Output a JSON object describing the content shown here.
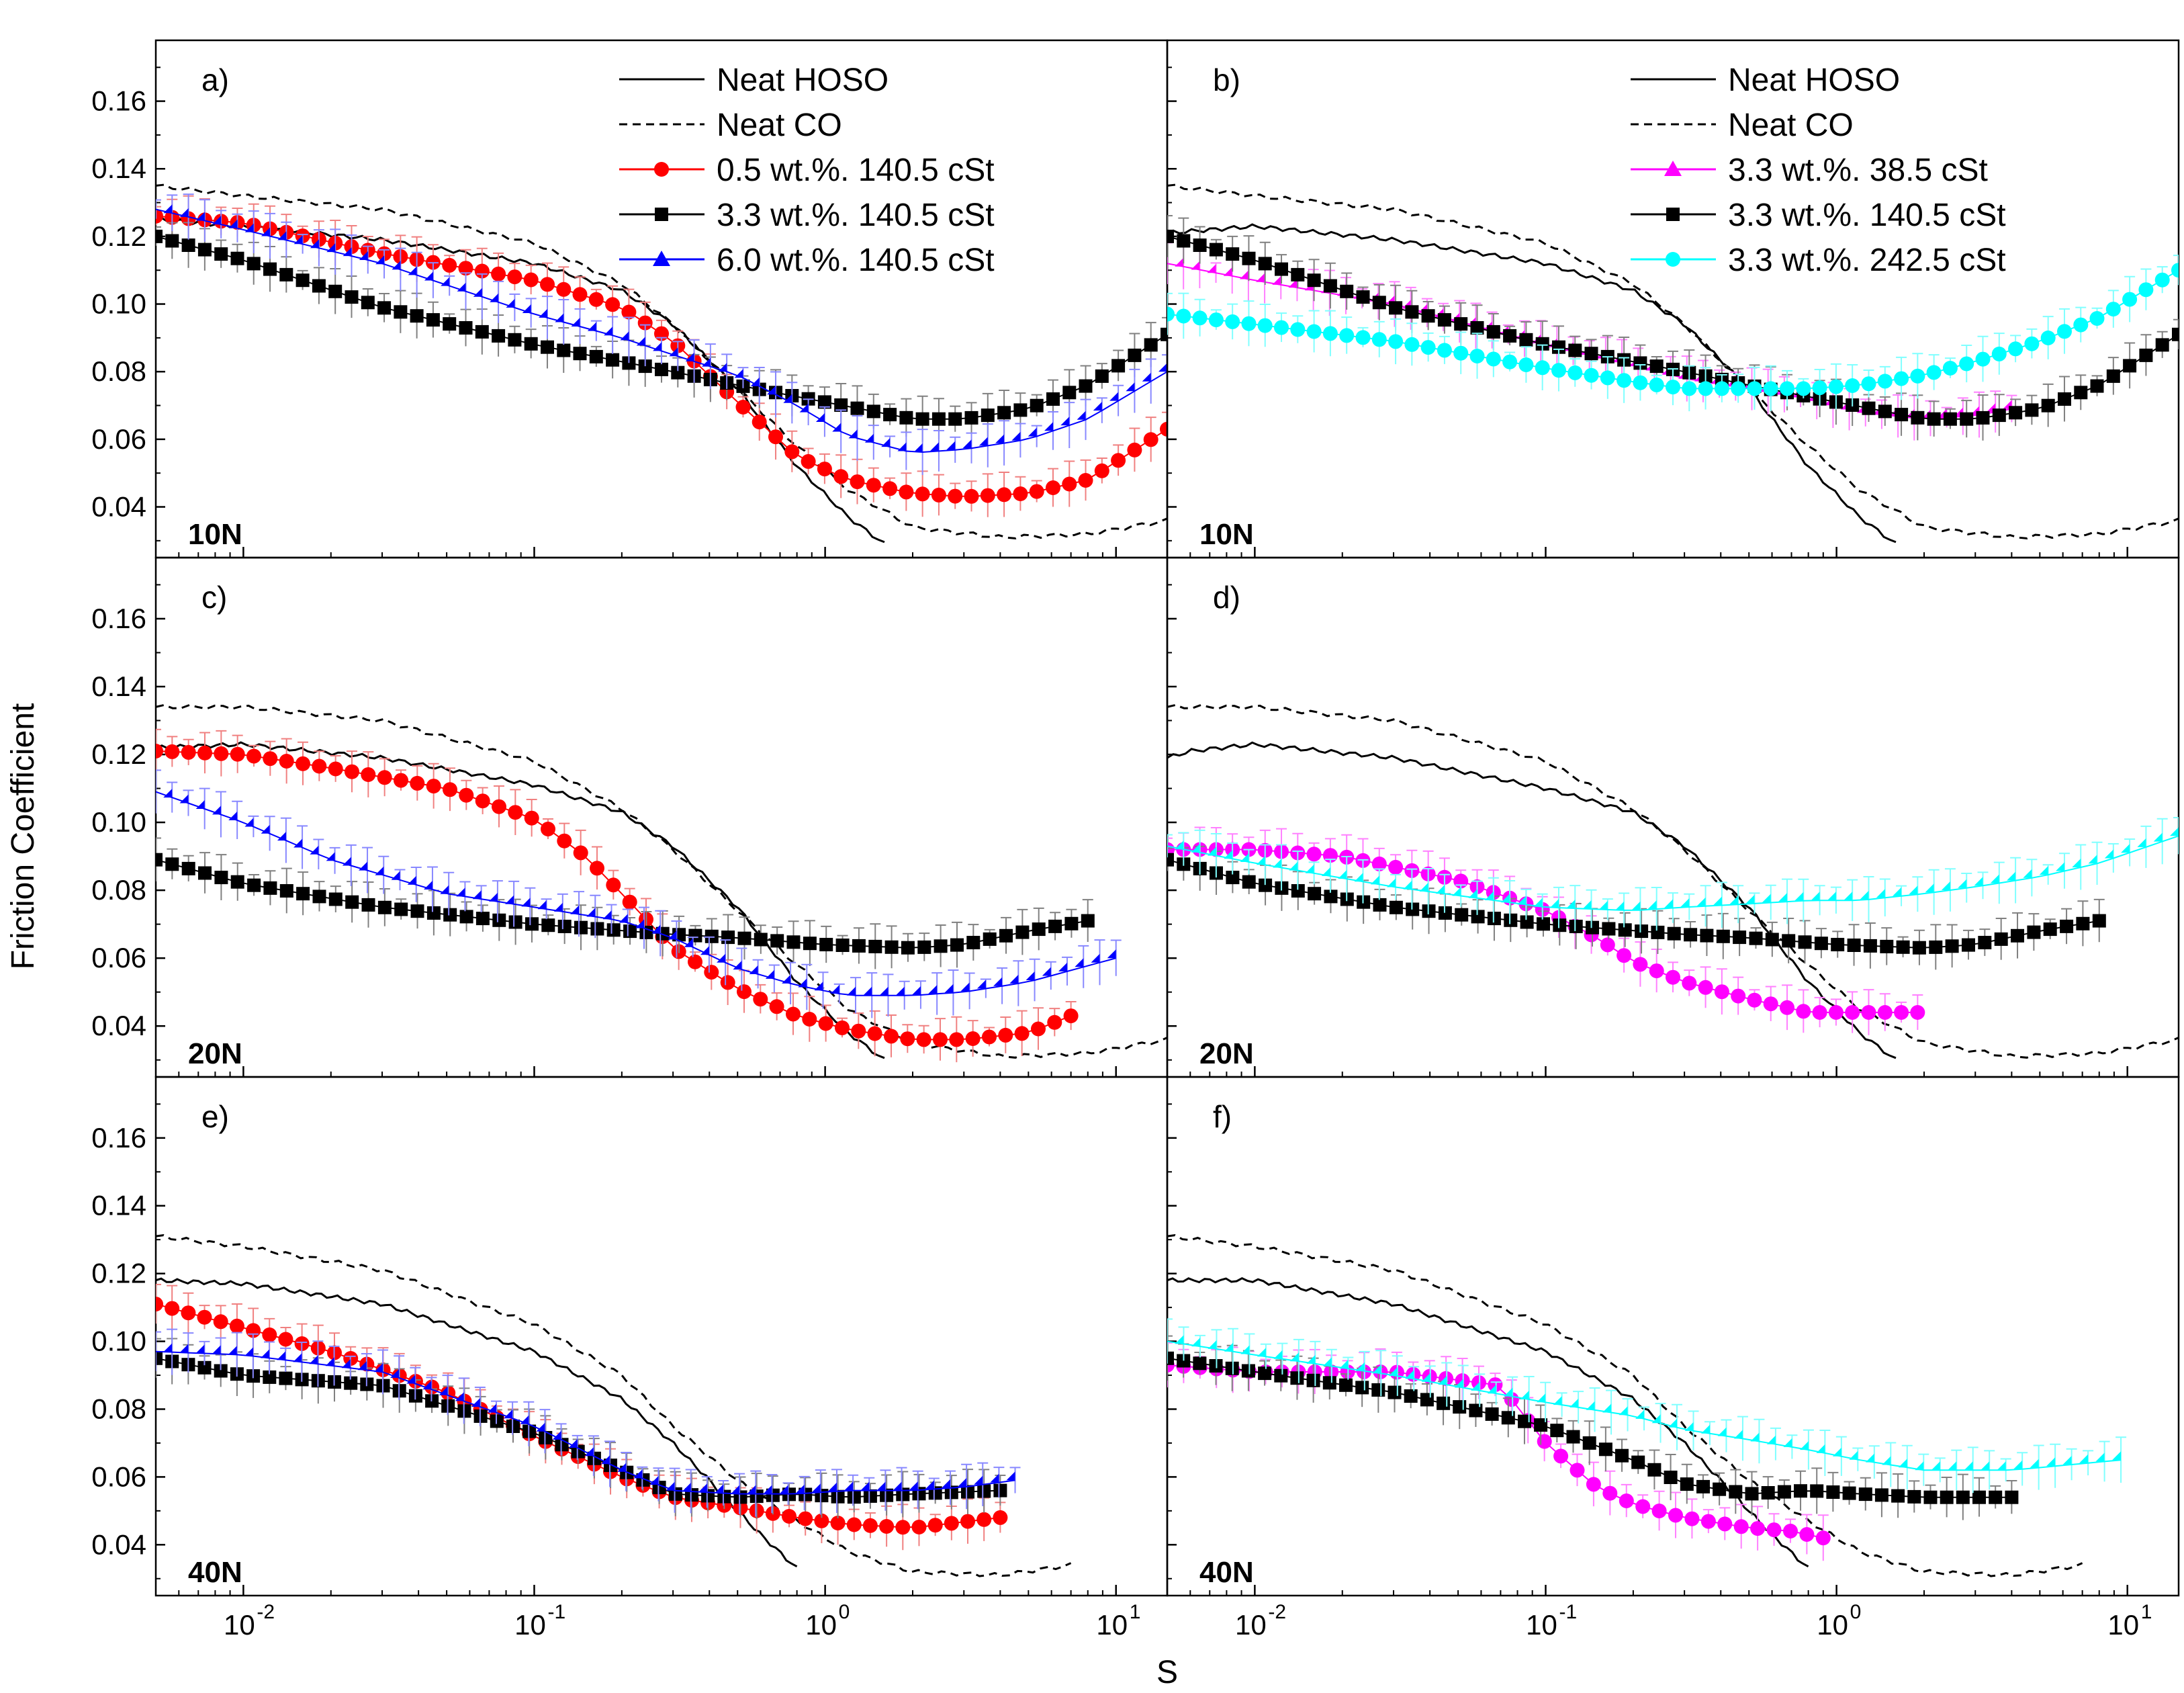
{
  "figure": {
    "ylabel": "Friction Coefficient",
    "xlabel": "S",
    "x_tick_labels": [
      "10",
      "10",
      "10",
      "10"
    ],
    "x_tick_exponents": [
      "-2",
      "-1",
      "0",
      "1"
    ],
    "y_tick_labels": [
      "0.04",
      "0.06",
      "0.08",
      "0.10",
      "0.12",
      "0.14",
      "0.16"
    ]
  },
  "colors": {
    "neat_hoso": "#000000",
    "neat_co": "#000000",
    "red": "#ff0000",
    "black": "#000000",
    "blue": "#0000ff",
    "magenta": "#ff00ff",
    "cyan": "#00ffff",
    "error_red": "#f08080",
    "error_blue": "#8888ff",
    "error_black": "#808080",
    "error_magenta": "#ff80ff",
    "error_cyan": "#80ffff"
  },
  "chart_data": [
    {
      "type": "scatter",
      "panel": "a)",
      "load": "10N",
      "x_scale": "log",
      "xlim": [
        0.005,
        15
      ],
      "ylim": [
        0.025,
        0.178
      ],
      "legend": [
        "Neat HOSO",
        "Neat CO",
        "0.5 wt.%. 140.5 cSt",
        "3.3 wt.%. 140.5 cSt",
        "6.0 wt.%. 140.5 cSt"
      ],
      "series": [
        {
          "name": "Neat HOSO",
          "style": "solid",
          "x": [
            0.005,
            0.01,
            0.03,
            0.1,
            0.2,
            0.3,
            0.5,
            0.8,
            1.2,
            1.6
          ],
          "y": [
            0.125,
            0.123,
            0.119,
            0.112,
            0.104,
            0.094,
            0.075,
            0.052,
            0.037,
            0.029
          ]
        },
        {
          "name": "Neat CO",
          "style": "dashed",
          "x": [
            0.005,
            0.01,
            0.03,
            0.1,
            0.2,
            0.3,
            0.5,
            0.8,
            1.2,
            2,
            4,
            8,
            15
          ],
          "y": [
            0.135,
            0.132,
            0.128,
            0.118,
            0.106,
            0.094,
            0.075,
            0.058,
            0.045,
            0.034,
            0.031,
            0.032,
            0.036
          ]
        },
        {
          "name": "0.5 wt.%. 140.5 cSt",
          "marker": "circle",
          "x": [
            0.005,
            0.01,
            0.03,
            0.1,
            0.2,
            0.3,
            0.5,
            0.8,
            1.2,
            2,
            3,
            5,
            8,
            15
          ],
          "y": [
            0.126,
            0.124,
            0.115,
            0.107,
            0.099,
            0.089,
            0.071,
            0.055,
            0.048,
            0.044,
            0.043,
            0.044,
            0.048,
            0.063
          ]
        },
        {
          "name": "3.3 wt.%. 140.5 cSt",
          "marker": "square",
          "x": [
            0.005,
            0.01,
            0.03,
            0.1,
            0.3,
            0.5,
            1,
            2,
            3,
            5,
            8,
            15
          ],
          "y": [
            0.12,
            0.113,
            0.099,
            0.088,
            0.08,
            0.076,
            0.071,
            0.066,
            0.066,
            0.069,
            0.076,
            0.091
          ]
        },
        {
          "name": "6.0 wt.%. 140.5 cSt",
          "marker": "triangle",
          "x": [
            0.005,
            0.01,
            0.03,
            0.1,
            0.2,
            0.3,
            0.5,
            0.8,
            1.2,
            2,
            3,
            5,
            8,
            15
          ],
          "y": [
            0.128,
            0.122,
            0.112,
            0.097,
            0.09,
            0.085,
            0.079,
            0.07,
            0.061,
            0.056,
            0.057,
            0.06,
            0.066,
            0.08
          ]
        }
      ]
    },
    {
      "type": "scatter",
      "panel": "b)",
      "load": "10N",
      "x_scale": "log",
      "xlim": [
        0.005,
        15
      ],
      "ylim": [
        0.025,
        0.178
      ],
      "legend": [
        "Neat HOSO",
        "Neat CO",
        "3.3 wt.%. 38.5 cSt",
        "3.3 wt.%. 140.5 cSt",
        "3.3 wt.%. 242.5 cSt"
      ],
      "series": [
        {
          "name": "Neat HOSO",
          "style": "solid",
          "x": [
            0.005,
            0.01,
            0.03,
            0.1,
            0.2,
            0.3,
            0.5,
            0.8,
            1.2,
            1.6
          ],
          "y": [
            0.121,
            0.123,
            0.119,
            0.112,
            0.104,
            0.094,
            0.075,
            0.052,
            0.037,
            0.029
          ]
        },
        {
          "name": "Neat CO",
          "style": "dashed",
          "x": [
            0.005,
            0.01,
            0.03,
            0.1,
            0.2,
            0.3,
            0.5,
            0.8,
            1.2,
            2,
            4,
            8,
            15
          ],
          "y": [
            0.135,
            0.132,
            0.128,
            0.118,
            0.106,
            0.094,
            0.075,
            0.058,
            0.045,
            0.034,
            0.031,
            0.032,
            0.036
          ]
        },
        {
          "name": "3.3 wt.%. 38.5 cSt",
          "marker": "triangle",
          "x": [
            0.005,
            0.01,
            0.03,
            0.1,
            0.2,
            0.3,
            0.5,
            0.8,
            1.2,
            2,
            3,
            4
          ],
          "y": [
            0.112,
            0.107,
            0.1,
            0.088,
            0.082,
            0.078,
            0.075,
            0.072,
            0.068,
            0.066,
            0.067,
            0.069
          ]
        },
        {
          "name": "3.3 wt.%. 140.5 cSt",
          "marker": "square",
          "x": [
            0.005,
            0.01,
            0.03,
            0.1,
            0.3,
            0.5,
            1,
            2,
            3,
            5,
            8,
            15
          ],
          "y": [
            0.12,
            0.113,
            0.099,
            0.088,
            0.08,
            0.076,
            0.071,
            0.066,
            0.066,
            0.069,
            0.076,
            0.091
          ]
        },
        {
          "name": "3.3 wt.%. 242.5 cSt",
          "marker": "circle",
          "x": [
            0.005,
            0.01,
            0.03,
            0.1,
            0.2,
            0.3,
            0.5,
            0.8,
            1.2,
            2,
            3,
            5,
            8,
            15
          ],
          "y": [
            0.097,
            0.094,
            0.089,
            0.081,
            0.077,
            0.075,
            0.075,
            0.075,
            0.076,
            0.079,
            0.083,
            0.089,
            0.096,
            0.11
          ]
        }
      ]
    },
    {
      "type": "scatter",
      "panel": "c)",
      "load": "20N",
      "x_scale": "log",
      "xlim": [
        0.005,
        15
      ],
      "ylim": [
        0.025,
        0.178
      ],
      "series": [
        {
          "name": "Neat HOSO",
          "style": "solid",
          "x": [
            0.005,
            0.01,
            0.03,
            0.1,
            0.2,
            0.3,
            0.5,
            0.8,
            1.2,
            1.6
          ],
          "y": [
            0.122,
            0.123,
            0.119,
            0.111,
            0.103,
            0.093,
            0.075,
            0.053,
            0.038,
            0.03
          ]
        },
        {
          "name": "Neat CO",
          "style": "dashed",
          "x": [
            0.005,
            0.01,
            0.03,
            0.1,
            0.2,
            0.3,
            0.5,
            0.8,
            1.2,
            2,
            4,
            8,
            15
          ],
          "y": [
            0.134,
            0.134,
            0.13,
            0.118,
            0.104,
            0.092,
            0.074,
            0.058,
            0.045,
            0.035,
            0.031,
            0.032,
            0.036
          ]
        },
        {
          "name": "0.5 wt.%. 140.5 cSt",
          "marker": "circle",
          "x": [
            0.005,
            0.01,
            0.02,
            0.05,
            0.1,
            0.15,
            0.2,
            0.3,
            0.5,
            0.8,
            1.2,
            2,
            3,
            5,
            7
          ],
          "y": [
            0.121,
            0.12,
            0.116,
            0.11,
            0.101,
            0.09,
            0.079,
            0.063,
            0.051,
            0.043,
            0.039,
            0.036,
            0.036,
            0.038,
            0.043
          ]
        },
        {
          "name": "3.3 wt.%. 140.5 cSt",
          "marker": "square",
          "x": [
            0.005,
            0.01,
            0.03,
            0.1,
            0.3,
            0.5,
            1,
            2,
            3,
            5,
            8
          ],
          "y": [
            0.089,
            0.082,
            0.075,
            0.07,
            0.067,
            0.066,
            0.064,
            0.063,
            0.064,
            0.068,
            0.071
          ]
        },
        {
          "name": "6.0 wt.%. 140.5 cSt",
          "marker": "triangle",
          "x": [
            0.005,
            0.01,
            0.02,
            0.05,
            0.1,
            0.2,
            0.3,
            0.5,
            0.8,
            1.2,
            2,
            3,
            5,
            10
          ],
          "y": [
            0.109,
            0.1,
            0.089,
            0.079,
            0.075,
            0.071,
            0.066,
            0.057,
            0.052,
            0.049,
            0.049,
            0.05,
            0.053,
            0.06
          ]
        }
      ]
    },
    {
      "type": "scatter",
      "panel": "d)",
      "load": "20N",
      "x_scale": "log",
      "xlim": [
        0.005,
        15
      ],
      "ylim": [
        0.025,
        0.178
      ],
      "series": [
        {
          "name": "Neat HOSO",
          "style": "solid",
          "x": [
            0.005,
            0.006,
            0.01,
            0.03,
            0.1,
            0.2,
            0.3,
            0.5,
            0.8,
            1.2,
            1.6
          ],
          "y": [
            0.119,
            0.121,
            0.123,
            0.119,
            0.11,
            0.103,
            0.093,
            0.075,
            0.053,
            0.038,
            0.03
          ]
        },
        {
          "name": "Neat CO",
          "style": "dashed",
          "x": [
            0.005,
            0.01,
            0.03,
            0.1,
            0.2,
            0.3,
            0.5,
            0.8,
            1.2,
            2,
            4,
            8,
            15
          ],
          "y": [
            0.134,
            0.134,
            0.13,
            0.118,
            0.104,
            0.092,
            0.074,
            0.058,
            0.045,
            0.035,
            0.031,
            0.032,
            0.036
          ]
        },
        {
          "name": "3.3 wt.%. 38.5 cSt",
          "marker": "circle",
          "x": [
            0.005,
            0.01,
            0.02,
            0.05,
            0.1,
            0.15,
            0.2,
            0.3,
            0.5,
            0.8,
            1.2,
            1.9
          ],
          "y": [
            0.092,
            0.092,
            0.09,
            0.083,
            0.074,
            0.066,
            0.059,
            0.053,
            0.048,
            0.044,
            0.044,
            0.044
          ]
        },
        {
          "name": "3.3 wt.%. 140.5 cSt",
          "marker": "square",
          "x": [
            0.005,
            0.01,
            0.03,
            0.1,
            0.3,
            0.5,
            1,
            2,
            3,
            5,
            8
          ],
          "y": [
            0.089,
            0.082,
            0.075,
            0.07,
            0.067,
            0.066,
            0.064,
            0.063,
            0.064,
            0.068,
            0.071
          ]
        },
        {
          "name": "3.3 wt.%. 242.5 cSt",
          "marker": "triangle",
          "x": [
            0.005,
            0.01,
            0.03,
            0.1,
            0.2,
            0.3,
            0.5,
            0.8,
            1.2,
            2,
            3,
            5,
            8,
            15
          ],
          "y": [
            0.093,
            0.088,
            0.081,
            0.075,
            0.074,
            0.075,
            0.076,
            0.077,
            0.077,
            0.079,
            0.081,
            0.084,
            0.088,
            0.096
          ]
        }
      ]
    },
    {
      "type": "scatter",
      "panel": "e)",
      "load": "40N",
      "x_scale": "log",
      "xlim": [
        0.005,
        15
      ],
      "ylim": [
        0.025,
        0.178
      ],
      "series": [
        {
          "name": "Neat HOSO",
          "style": "solid",
          "x": [
            0.005,
            0.01,
            0.03,
            0.1,
            0.2,
            0.3,
            0.4,
            0.5,
            0.6,
            0.8
          ],
          "y": [
            0.118,
            0.117,
            0.111,
            0.097,
            0.083,
            0.07,
            0.059,
            0.05,
            0.043,
            0.033
          ]
        },
        {
          "name": "Neat CO",
          "style": "dashed",
          "x": [
            0.005,
            0.01,
            0.03,
            0.1,
            0.2,
            0.3,
            0.5,
            0.8,
            1.2,
            2,
            4,
            7
          ],
          "y": [
            0.131,
            0.128,
            0.121,
            0.105,
            0.09,
            0.075,
            0.059,
            0.047,
            0.038,
            0.032,
            0.031,
            0.034
          ]
        },
        {
          "name": "0.5 wt.%. 140.5 cSt",
          "marker": "circle",
          "x": [
            0.005,
            0.01,
            0.02,
            0.05,
            0.1,
            0.2,
            0.3,
            0.5,
            0.8,
            1.2,
            2,
            4
          ],
          "y": [
            0.111,
            0.104,
            0.097,
            0.085,
            0.072,
            0.06,
            0.054,
            0.051,
            0.048,
            0.046,
            0.045,
            0.048
          ]
        },
        {
          "name": "3.3 wt.%. 140.5 cSt",
          "marker": "square",
          "x": [
            0.005,
            0.01,
            0.03,
            0.1,
            0.2,
            0.3,
            0.5,
            0.8,
            1.2,
            2,
            4
          ],
          "y": [
            0.095,
            0.09,
            0.087,
            0.073,
            0.062,
            0.055,
            0.054,
            0.055,
            0.054,
            0.055,
            0.056
          ]
        },
        {
          "name": "6.0 wt.%. 140.5 cSt",
          "marker": "triangle",
          "x": [
            0.005,
            0.01,
            0.03,
            0.1,
            0.2,
            0.3,
            0.5,
            0.8,
            1.2,
            2,
            3,
            4.5
          ],
          "y": [
            0.097,
            0.096,
            0.091,
            0.075,
            0.062,
            0.056,
            0.055,
            0.055,
            0.056,
            0.056,
            0.057,
            0.059
          ]
        }
      ]
    },
    {
      "type": "scatter",
      "panel": "f)",
      "load": "40N",
      "x_scale": "log",
      "xlim": [
        0.005,
        15
      ],
      "ylim": [
        0.025,
        0.178
      ],
      "series": [
        {
          "name": "Neat HOSO",
          "style": "solid",
          "x": [
            0.005,
            0.01,
            0.03,
            0.1,
            0.2,
            0.3,
            0.4,
            0.5,
            0.6,
            0.8
          ],
          "y": [
            0.118,
            0.118,
            0.111,
            0.097,
            0.083,
            0.07,
            0.059,
            0.05,
            0.043,
            0.033
          ]
        },
        {
          "name": "Neat CO",
          "style": "dashed",
          "x": [
            0.005,
            0.01,
            0.03,
            0.1,
            0.2,
            0.3,
            0.5,
            0.8,
            1.2,
            2,
            4,
            7
          ],
          "y": [
            0.131,
            0.128,
            0.121,
            0.105,
            0.09,
            0.075,
            0.059,
            0.047,
            0.038,
            0.032,
            0.031,
            0.034
          ]
        },
        {
          "name": "3.3 wt.%. 38.5 cSt",
          "marker": "circle",
          "x": [
            0.005,
            0.01,
            0.03,
            0.07,
            0.1,
            0.15,
            0.2,
            0.3,
            0.5,
            0.7,
            0.9
          ],
          "y": [
            0.093,
            0.091,
            0.091,
            0.087,
            0.07,
            0.057,
            0.052,
            0.048,
            0.045,
            0.044,
            0.042
          ]
        },
        {
          "name": "3.3 wt.%. 140.5 cSt",
          "marker": "square",
          "x": [
            0.005,
            0.01,
            0.03,
            0.1,
            0.2,
            0.3,
            0.5,
            0.8,
            1.2,
            2,
            4
          ],
          "y": [
            0.095,
            0.091,
            0.085,
            0.075,
            0.065,
            0.058,
            0.055,
            0.056,
            0.055,
            0.054,
            0.054
          ]
        },
        {
          "name": "3.3 wt.%. 242.5 cSt",
          "marker": "triangle",
          "x": [
            0.005,
            0.01,
            0.03,
            0.1,
            0.2,
            0.3,
            0.5,
            0.8,
            1.2,
            2,
            4,
            9.5
          ],
          "y": [
            0.1,
            0.096,
            0.09,
            0.082,
            0.078,
            0.074,
            0.071,
            0.068,
            0.065,
            0.062,
            0.062,
            0.065
          ]
        }
      ]
    }
  ]
}
